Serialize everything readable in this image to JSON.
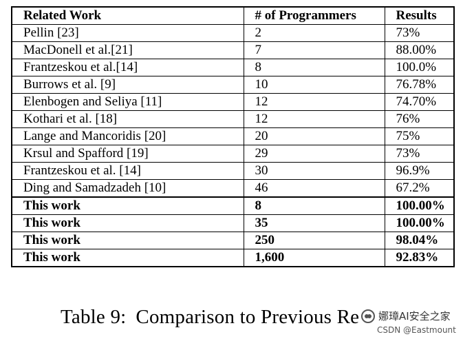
{
  "table": {
    "headers": [
      "Related Work",
      "# of Programmers",
      "Results"
    ],
    "rows": [
      {
        "work": "Pellin [23]",
        "programmers": "2",
        "results": "73%",
        "bold": false
      },
      {
        "work": "MacDonell et al.[21]",
        "programmers": "7",
        "results": "88.00%",
        "bold": false
      },
      {
        "work": "Frantzeskou et al.[14]",
        "programmers": "8",
        "results": "100.0%",
        "bold": false
      },
      {
        "work": "Burrows et al. [9]",
        "programmers": "10",
        "results": "76.78%",
        "bold": false
      },
      {
        "work": "Elenbogen and Seliya [11]",
        "programmers": "12",
        "results": "74.70%",
        "bold": false
      },
      {
        "work": "Kothari et al. [18]",
        "programmers": "12",
        "results": "76%",
        "bold": false
      },
      {
        "work": "Lange and Mancoridis [20]",
        "programmers": "20",
        "results": "75%",
        "bold": false
      },
      {
        "work": "Krsul and Spafford [19]",
        "programmers": "29",
        "results": "73%",
        "bold": false
      },
      {
        "work": "Frantzeskou et al. [14]",
        "programmers": "30",
        "results": "96.9%",
        "bold": false
      },
      {
        "work": "Ding and Samadzadeh [10]",
        "programmers": "46",
        "results": "67.2%",
        "bold": false
      },
      {
        "work": "This work",
        "programmers": "8",
        "results": "100.00%",
        "bold": true
      },
      {
        "work": "This work",
        "programmers": "35",
        "results": "100.00%",
        "bold": true
      },
      {
        "work": "This work",
        "programmers": "250",
        "results": "98.04%",
        "bold": true
      },
      {
        "work": "This work",
        "programmers": "1,600",
        "results": "92.83%",
        "bold": true
      }
    ]
  },
  "caption": {
    "label": "Table 9:",
    "text": "Comparison to Previous Re"
  },
  "watermark": {
    "text": "娜璋AI安全之家",
    "sub": "CSDN @Eastmount",
    "icon": "wechat-icon"
  }
}
